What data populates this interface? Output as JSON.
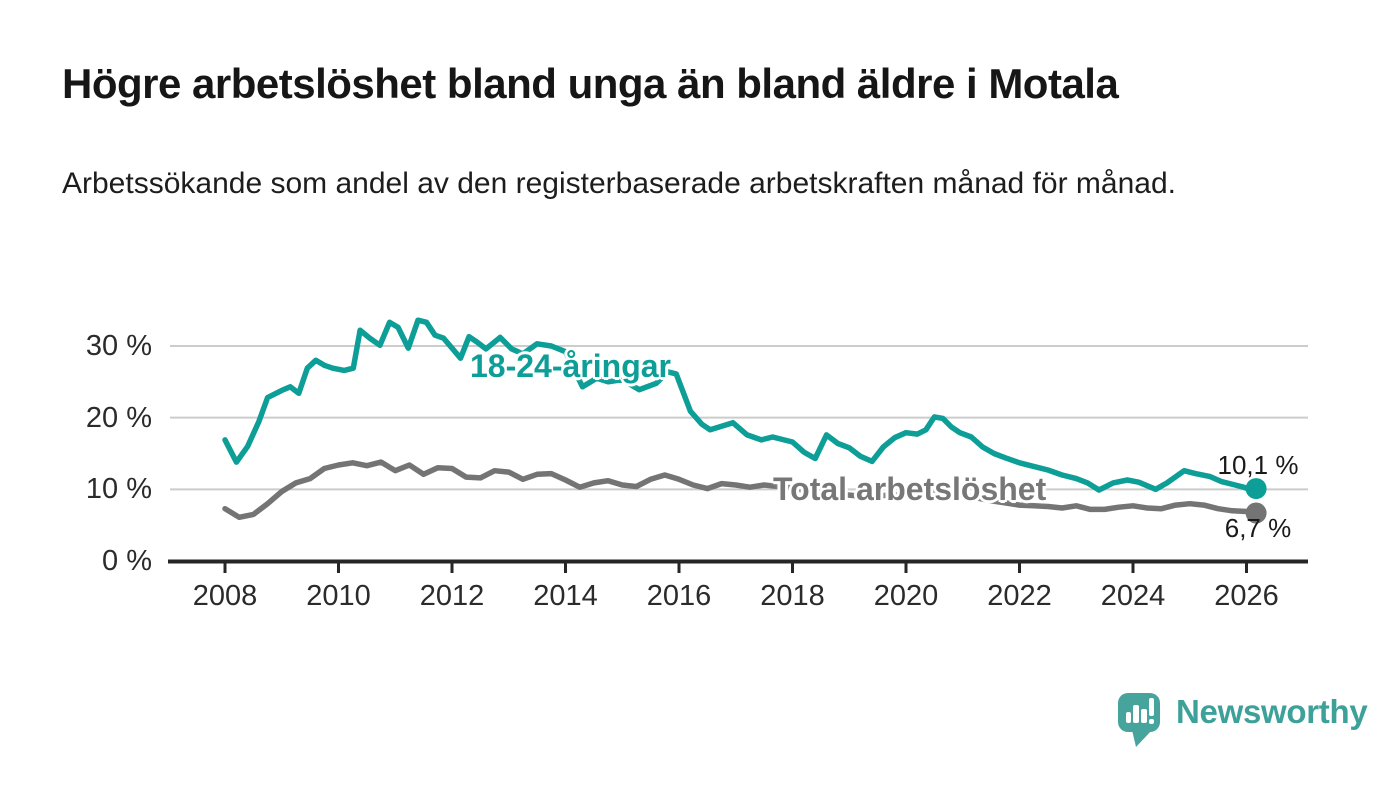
{
  "title": "Högre arbetslöshet bland unga än bland äldre i Motala",
  "subtitle": "Arbetssökande som andel av den registerbaserade arbetskraften månad för månad.",
  "chart_data": {
    "type": "line",
    "unit": "%",
    "grid": true,
    "legend": "inline-labels",
    "x_axis": {
      "range": [
        2007.9,
        2027.1
      ],
      "ticks": [
        {
          "value": 2008,
          "label": "2008"
        },
        {
          "value": 2010,
          "label": "2010"
        },
        {
          "value": 2012,
          "label": "2012"
        },
        {
          "value": 2014,
          "label": "2014"
        },
        {
          "value": 2016,
          "label": "2016"
        },
        {
          "value": 2018,
          "label": "2018"
        },
        {
          "value": 2020,
          "label": "2020"
        },
        {
          "value": 2022,
          "label": "2022"
        },
        {
          "value": 2024,
          "label": "2024"
        },
        {
          "value": 2026,
          "label": "2026"
        }
      ]
    },
    "y_axis": {
      "range": [
        0,
        35
      ],
      "ticks": [
        {
          "value": 0,
          "label": "0 %"
        },
        {
          "value": 10,
          "label": "10 %"
        },
        {
          "value": 20,
          "label": "20 %"
        },
        {
          "value": 30,
          "label": "30 %"
        }
      ]
    },
    "series": [
      {
        "id": "youth",
        "name": "18-24-åringar",
        "color": "#0d9e97",
        "end_label": "10,1 %",
        "end_value": 10.1,
        "points": [
          [
            2008.0,
            16.9
          ],
          [
            2008.2,
            13.8
          ],
          [
            2008.4,
            16.0
          ],
          [
            2008.6,
            19.5
          ],
          [
            2008.75,
            22.8
          ],
          [
            2009.0,
            23.8
          ],
          [
            2009.15,
            24.3
          ],
          [
            2009.3,
            23.4
          ],
          [
            2009.45,
            26.9
          ],
          [
            2009.6,
            28.0
          ],
          [
            2009.75,
            27.3
          ],
          [
            2009.9,
            26.9
          ],
          [
            2010.1,
            26.6
          ],
          [
            2010.26,
            26.9
          ],
          [
            2010.38,
            32.2
          ],
          [
            2010.55,
            31.1
          ],
          [
            2010.73,
            30.1
          ],
          [
            2010.9,
            33.3
          ],
          [
            2011.05,
            32.6
          ],
          [
            2011.23,
            29.7
          ],
          [
            2011.4,
            33.6
          ],
          [
            2011.55,
            33.3
          ],
          [
            2011.7,
            31.5
          ],
          [
            2011.85,
            31.1
          ],
          [
            2012.0,
            29.7
          ],
          [
            2012.15,
            28.3
          ],
          [
            2012.3,
            31.3
          ],
          [
            2012.45,
            30.5
          ],
          [
            2012.6,
            29.6
          ],
          [
            2012.85,
            31.2
          ],
          [
            2013.05,
            29.6
          ],
          [
            2013.25,
            28.9
          ],
          [
            2013.5,
            30.3
          ],
          [
            2013.75,
            30.0
          ],
          [
            2014.0,
            29.2
          ],
          [
            2014.3,
            24.3
          ],
          [
            2014.55,
            25.5
          ],
          [
            2014.75,
            25.0
          ],
          [
            2015.0,
            25.3
          ],
          [
            2015.3,
            23.9
          ],
          [
            2015.6,
            24.8
          ],
          [
            2015.8,
            26.4
          ],
          [
            2015.95,
            26.1
          ],
          [
            2016.2,
            20.9
          ],
          [
            2016.4,
            19.1
          ],
          [
            2016.55,
            18.3
          ],
          [
            2016.75,
            18.8
          ],
          [
            2016.95,
            19.3
          ],
          [
            2017.2,
            17.6
          ],
          [
            2017.45,
            16.9
          ],
          [
            2017.65,
            17.3
          ],
          [
            2018.0,
            16.6
          ],
          [
            2018.2,
            15.2
          ],
          [
            2018.4,
            14.3
          ],
          [
            2018.6,
            17.6
          ],
          [
            2018.8,
            16.4
          ],
          [
            2019.0,
            15.8
          ],
          [
            2019.2,
            14.6
          ],
          [
            2019.4,
            13.9
          ],
          [
            2019.6,
            15.9
          ],
          [
            2019.8,
            17.2
          ],
          [
            2020.0,
            17.9
          ],
          [
            2020.2,
            17.7
          ],
          [
            2020.35,
            18.3
          ],
          [
            2020.5,
            20.1
          ],
          [
            2020.65,
            19.9
          ],
          [
            2020.8,
            18.7
          ],
          [
            2020.95,
            17.9
          ],
          [
            2021.15,
            17.3
          ],
          [
            2021.35,
            15.9
          ],
          [
            2021.55,
            15.0
          ],
          [
            2021.75,
            14.4
          ],
          [
            2022.0,
            13.7
          ],
          [
            2022.25,
            13.2
          ],
          [
            2022.5,
            12.7
          ],
          [
            2022.75,
            12.0
          ],
          [
            2023.0,
            11.5
          ],
          [
            2023.2,
            10.9
          ],
          [
            2023.4,
            9.9
          ],
          [
            2023.65,
            10.9
          ],
          [
            2023.9,
            11.3
          ],
          [
            2024.1,
            11.0
          ],
          [
            2024.4,
            10.0
          ],
          [
            2024.6,
            10.9
          ],
          [
            2024.9,
            12.6
          ],
          [
            2025.1,
            12.2
          ],
          [
            2025.35,
            11.8
          ],
          [
            2025.55,
            11.1
          ],
          [
            2025.8,
            10.6
          ],
          [
            2025.95,
            10.3
          ],
          [
            2026.08,
            9.9
          ],
          [
            2026.17,
            10.1
          ]
        ]
      },
      {
        "id": "total",
        "name": "Total arbetslöshet",
        "color": "#747474",
        "end_label": "6,7 %",
        "end_value": 6.7,
        "points": [
          [
            2008.0,
            7.3
          ],
          [
            2008.25,
            6.1
          ],
          [
            2008.5,
            6.5
          ],
          [
            2008.75,
            8.0
          ],
          [
            2009.0,
            9.7
          ],
          [
            2009.25,
            10.9
          ],
          [
            2009.5,
            11.5
          ],
          [
            2009.75,
            12.9
          ],
          [
            2010.0,
            13.4
          ],
          [
            2010.25,
            13.7
          ],
          [
            2010.5,
            13.3
          ],
          [
            2010.75,
            13.8
          ],
          [
            2011.0,
            12.6
          ],
          [
            2011.25,
            13.4
          ],
          [
            2011.5,
            12.1
          ],
          [
            2011.75,
            13.0
          ],
          [
            2012.0,
            12.9
          ],
          [
            2012.25,
            11.7
          ],
          [
            2012.5,
            11.6
          ],
          [
            2012.75,
            12.6
          ],
          [
            2013.0,
            12.4
          ],
          [
            2013.25,
            11.4
          ],
          [
            2013.5,
            12.1
          ],
          [
            2013.75,
            12.2
          ],
          [
            2014.0,
            11.3
          ],
          [
            2014.25,
            10.3
          ],
          [
            2014.5,
            10.9
          ],
          [
            2014.75,
            11.2
          ],
          [
            2015.0,
            10.6
          ],
          [
            2015.25,
            10.4
          ],
          [
            2015.5,
            11.4
          ],
          [
            2015.75,
            12.0
          ],
          [
            2016.0,
            11.4
          ],
          [
            2016.25,
            10.6
          ],
          [
            2016.5,
            10.1
          ],
          [
            2016.75,
            10.8
          ],
          [
            2017.0,
            10.6
          ],
          [
            2017.25,
            10.3
          ],
          [
            2017.5,
            10.6
          ],
          [
            2017.75,
            10.4
          ],
          [
            2018.0,
            10.2
          ],
          [
            2018.25,
            9.8
          ],
          [
            2018.5,
            9.6
          ],
          [
            2018.75,
            9.4
          ],
          [
            2019.0,
            9.2
          ],
          [
            2019.25,
            9.0
          ],
          [
            2019.5,
            9.1
          ],
          [
            2019.75,
            9.2
          ],
          [
            2020.0,
            9.3
          ],
          [
            2020.25,
            9.8
          ],
          [
            2020.5,
            9.9
          ],
          [
            2020.75,
            9.6
          ],
          [
            2021.0,
            9.2
          ],
          [
            2021.25,
            8.8
          ],
          [
            2021.5,
            8.4
          ],
          [
            2021.75,
            8.1
          ],
          [
            2022.0,
            7.8
          ],
          [
            2022.25,
            7.7
          ],
          [
            2022.5,
            7.6
          ],
          [
            2022.75,
            7.4
          ],
          [
            2023.0,
            7.7
          ],
          [
            2023.25,
            7.2
          ],
          [
            2023.5,
            7.2
          ],
          [
            2023.75,
            7.5
          ],
          [
            2024.0,
            7.7
          ],
          [
            2024.25,
            7.4
          ],
          [
            2024.5,
            7.3
          ],
          [
            2024.75,
            7.8
          ],
          [
            2025.0,
            8.0
          ],
          [
            2025.25,
            7.8
          ],
          [
            2025.5,
            7.3
          ],
          [
            2025.75,
            7.0
          ],
          [
            2026.0,
            6.9
          ],
          [
            2026.17,
            6.7
          ]
        ]
      }
    ]
  },
  "logo": {
    "text": "Newsworthy",
    "icon": "newsworthy-speech-bubble-chart-icon",
    "text_color": "#3da19a",
    "icon_color": "#47a49c"
  }
}
